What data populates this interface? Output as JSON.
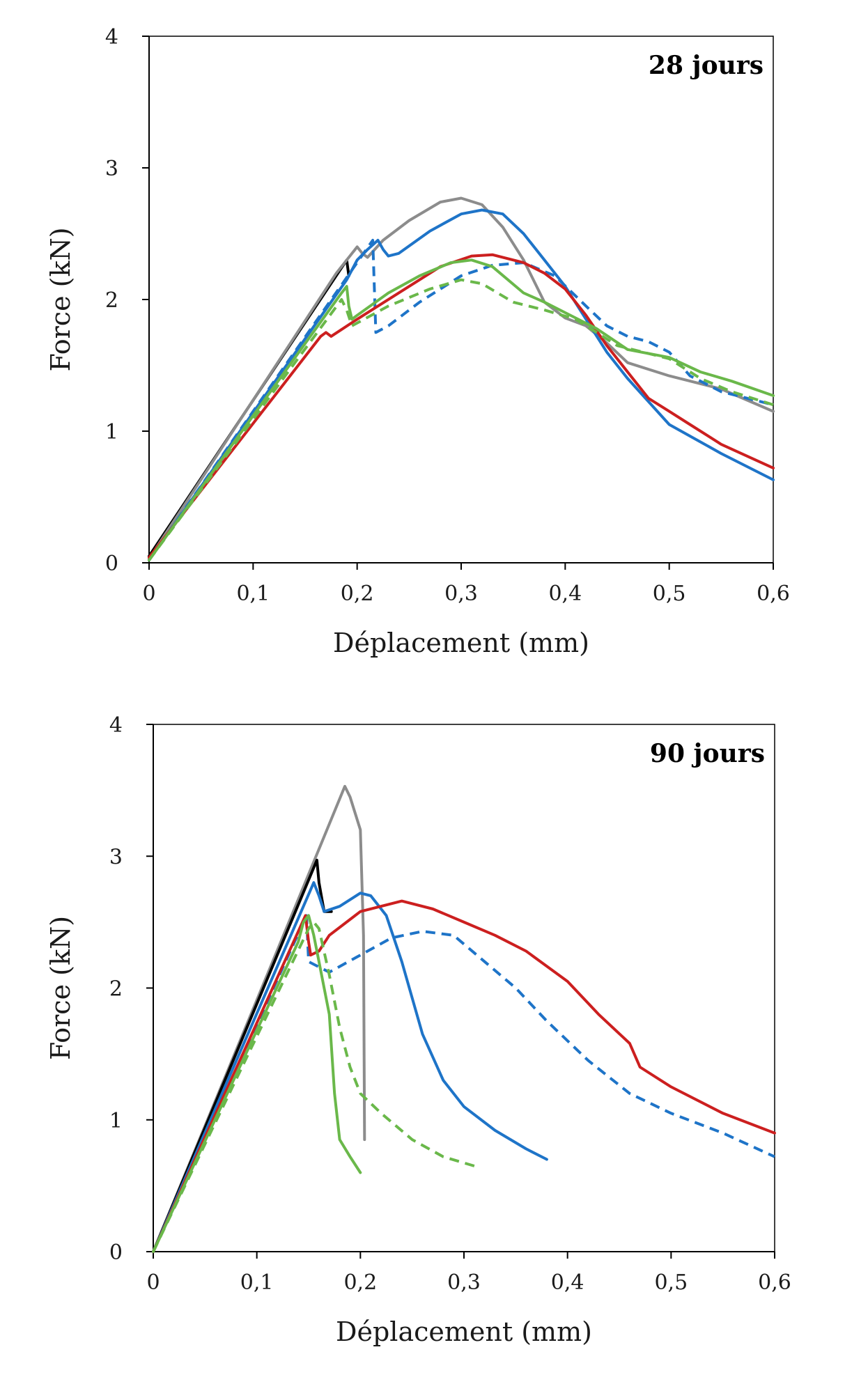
{
  "chart_data": [
    {
      "type": "line",
      "title": "28 jours",
      "xlabel": "Déplacement (mm)",
      "ylabel": "Force (kN)",
      "xlim": [
        0,
        0.6
      ],
      "ylim": [
        0,
        4
      ],
      "xticks": [
        "0",
        "0,1",
        "0,2",
        "0,3",
        "0,4",
        "0,5",
        "0,6"
      ],
      "yticks": [
        "0",
        "1",
        "2",
        "3",
        "4"
      ],
      "grid": false,
      "legend": "none",
      "series": [
        {
          "color": "#000000",
          "dash": "solid",
          "points": [
            [
              0,
              0.05
            ],
            [
              0.19,
              2.3
            ],
            [
              0.192,
              2.18
            ]
          ]
        },
        {
          "color": "#8c8c8c",
          "dash": "solid",
          "points": [
            [
              0,
              0.03
            ],
            [
              0.18,
              2.2
            ],
            [
              0.2,
              2.4
            ],
            [
              0.205,
              2.35
            ],
            [
              0.21,
              2.32
            ],
            [
              0.225,
              2.45
            ],
            [
              0.25,
              2.6
            ],
            [
              0.28,
              2.74
            ],
            [
              0.3,
              2.77
            ],
            [
              0.32,
              2.72
            ],
            [
              0.34,
              2.55
            ],
            [
              0.36,
              2.3
            ],
            [
              0.38,
              1.98
            ],
            [
              0.4,
              1.86
            ],
            [
              0.42,
              1.8
            ],
            [
              0.44,
              1.67
            ],
            [
              0.46,
              1.52
            ],
            [
              0.5,
              1.42
            ],
            [
              0.55,
              1.32
            ],
            [
              0.6,
              1.15
            ]
          ]
        },
        {
          "color": "#1e74c8",
          "dash": "solid",
          "points": [
            [
              0,
              0.02
            ],
            [
              0.19,
              2.15
            ],
            [
              0.2,
              2.3
            ],
            [
              0.21,
              2.38
            ],
            [
              0.22,
              2.45
            ],
            [
              0.225,
              2.38
            ],
            [
              0.23,
              2.33
            ],
            [
              0.24,
              2.35
            ],
            [
              0.27,
              2.52
            ],
            [
              0.3,
              2.65
            ],
            [
              0.32,
              2.68
            ],
            [
              0.34,
              2.65
            ],
            [
              0.36,
              2.5
            ],
            [
              0.38,
              2.3
            ],
            [
              0.4,
              2.1
            ],
            [
              0.42,
              1.85
            ],
            [
              0.44,
              1.6
            ],
            [
              0.46,
              1.4
            ],
            [
              0.5,
              1.05
            ],
            [
              0.55,
              0.83
            ],
            [
              0.6,
              0.63
            ]
          ]
        },
        {
          "color": "#1e74c8",
          "dash": "dashed",
          "points": [
            [
              0,
              0.02
            ],
            [
              0.215,
              2.45
            ],
            [
              0.218,
              1.75
            ],
            [
              0.23,
              1.8
            ],
            [
              0.26,
              1.98
            ],
            [
              0.3,
              2.18
            ],
            [
              0.33,
              2.26
            ],
            [
              0.36,
              2.28
            ],
            [
              0.39,
              2.18
            ],
            [
              0.42,
              1.95
            ],
            [
              0.44,
              1.8
            ],
            [
              0.46,
              1.72
            ],
            [
              0.48,
              1.68
            ],
            [
              0.5,
              1.6
            ],
            [
              0.52,
              1.42
            ],
            [
              0.55,
              1.3
            ],
            [
              0.6,
              1.2
            ]
          ]
        },
        {
          "color": "#cc1f1f",
          "dash": "solid",
          "points": [
            [
              0,
              0.04
            ],
            [
              0.165,
              1.72
            ],
            [
              0.17,
              1.75
            ],
            [
              0.175,
              1.72
            ],
            [
              0.2,
              1.85
            ],
            [
              0.24,
              2.05
            ],
            [
              0.28,
              2.25
            ],
            [
              0.31,
              2.33
            ],
            [
              0.33,
              2.34
            ],
            [
              0.36,
              2.28
            ],
            [
              0.38,
              2.2
            ],
            [
              0.4,
              2.08
            ],
            [
              0.42,
              1.88
            ],
            [
              0.44,
              1.65
            ],
            [
              0.46,
              1.45
            ],
            [
              0.48,
              1.25
            ],
            [
              0.5,
              1.15
            ],
            [
              0.52,
              1.05
            ],
            [
              0.55,
              0.9
            ],
            [
              0.6,
              0.72
            ]
          ]
        },
        {
          "color": "#6ab84a",
          "dash": "solid",
          "points": [
            [
              0,
              0.02
            ],
            [
              0.185,
              2.05
            ],
            [
              0.19,
              2.1
            ],
            [
              0.192,
              1.95
            ],
            [
              0.195,
              1.85
            ],
            [
              0.2,
              1.88
            ],
            [
              0.23,
              2.05
            ],
            [
              0.26,
              2.18
            ],
            [
              0.29,
              2.28
            ],
            [
              0.31,
              2.3
            ],
            [
              0.33,
              2.25
            ],
            [
              0.36,
              2.05
            ],
            [
              0.38,
              1.98
            ],
            [
              0.4,
              1.9
            ],
            [
              0.43,
              1.78
            ],
            [
              0.46,
              1.62
            ],
            [
              0.5,
              1.56
            ],
            [
              0.53,
              1.45
            ],
            [
              0.56,
              1.38
            ],
            [
              0.6,
              1.27
            ]
          ]
        },
        {
          "color": "#6ab84a",
          "dash": "dashed",
          "points": [
            [
              0,
              0.02
            ],
            [
              0.185,
              2.0
            ],
            [
              0.19,
              1.92
            ],
            [
              0.195,
              1.8
            ],
            [
              0.23,
              1.95
            ],
            [
              0.27,
              2.08
            ],
            [
              0.3,
              2.15
            ],
            [
              0.32,
              2.12
            ],
            [
              0.35,
              1.98
            ],
            [
              0.38,
              1.92
            ],
            [
              0.41,
              1.85
            ],
            [
              0.45,
              1.65
            ],
            [
              0.5,
              1.55
            ],
            [
              0.53,
              1.4
            ],
            [
              0.56,
              1.3
            ],
            [
              0.6,
              1.2
            ]
          ]
        }
      ]
    },
    {
      "type": "line",
      "title": "90 jours",
      "xlabel": "Déplacement (mm)",
      "ylabel": "Force (kN)",
      "xlim": [
        0,
        0.6
      ],
      "ylim": [
        0,
        4
      ],
      "xticks": [
        "0",
        "0,1",
        "0,2",
        "0,3",
        "0,4",
        "0,5",
        "0,6"
      ],
      "yticks": [
        "0",
        "1",
        "2",
        "3",
        "4"
      ],
      "grid": false,
      "legend": "none",
      "series": [
        {
          "color": "#8c8c8c",
          "dash": "solid",
          "points": [
            [
              0,
              0
            ],
            [
              0.185,
              3.53
            ],
            [
              0.19,
              3.45
            ],
            [
              0.2,
              3.2
            ],
            [
              0.203,
              2.4
            ],
            [
              0.204,
              0.85
            ]
          ]
        },
        {
          "color": "#000000",
          "dash": "solid",
          "points": [
            [
              0,
              0
            ],
            [
              0.158,
              2.97
            ],
            [
              0.16,
              2.8
            ],
            [
              0.165,
              2.58
            ],
            [
              0.172,
              2.58
            ]
          ]
        },
        {
          "color": "#1e74c8",
          "dash": "solid",
          "points": [
            [
              0,
              0
            ],
            [
              0.155,
              2.8
            ],
            [
              0.16,
              2.7
            ],
            [
              0.165,
              2.58
            ],
            [
              0.18,
              2.62
            ],
            [
              0.2,
              2.72
            ],
            [
              0.21,
              2.7
            ],
            [
              0.225,
              2.55
            ],
            [
              0.24,
              2.2
            ],
            [
              0.26,
              1.65
            ],
            [
              0.28,
              1.3
            ],
            [
              0.3,
              1.1
            ],
            [
              0.33,
              0.92
            ],
            [
              0.36,
              0.78
            ],
            [
              0.38,
              0.7
            ]
          ]
        },
        {
          "color": "#1e74c8",
          "dash": "dashed",
          "points": [
            [
              0,
              0
            ],
            [
              0.148,
              2.55
            ],
            [
              0.15,
              2.2
            ],
            [
              0.17,
              2.12
            ],
            [
              0.2,
              2.25
            ],
            [
              0.23,
              2.38
            ],
            [
              0.26,
              2.43
            ],
            [
              0.29,
              2.4
            ],
            [
              0.32,
              2.2
            ],
            [
              0.35,
              2.0
            ],
            [
              0.38,
              1.75
            ],
            [
              0.42,
              1.45
            ],
            [
              0.46,
              1.2
            ],
            [
              0.5,
              1.05
            ],
            [
              0.55,
              0.9
            ],
            [
              0.6,
              0.72
            ]
          ]
        },
        {
          "color": "#cc1f1f",
          "dash": "solid",
          "points": [
            [
              0,
              0
            ],
            [
              0.147,
              2.55
            ],
            [
              0.15,
              2.35
            ],
            [
              0.152,
              2.25
            ],
            [
              0.16,
              2.28
            ],
            [
              0.17,
              2.4
            ],
            [
              0.2,
              2.58
            ],
            [
              0.24,
              2.66
            ],
            [
              0.27,
              2.6
            ],
            [
              0.3,
              2.5
            ],
            [
              0.33,
              2.4
            ],
            [
              0.36,
              2.28
            ],
            [
              0.4,
              2.05
            ],
            [
              0.43,
              1.8
            ],
            [
              0.46,
              1.58
            ],
            [
              0.47,
              1.4
            ],
            [
              0.5,
              1.25
            ],
            [
              0.55,
              1.05
            ],
            [
              0.6,
              0.9
            ]
          ]
        },
        {
          "color": "#6ab84a",
          "dash": "solid",
          "points": [
            [
              0,
              0
            ],
            [
              0.14,
              2.35
            ],
            [
              0.145,
              2.5
            ],
            [
              0.15,
              2.55
            ],
            [
              0.155,
              2.4
            ],
            [
              0.16,
              2.2
            ],
            [
              0.17,
              1.8
            ],
            [
              0.175,
              1.2
            ],
            [
              0.18,
              0.85
            ],
            [
              0.19,
              0.72
            ],
            [
              0.2,
              0.6
            ]
          ]
        },
        {
          "color": "#6ab84a",
          "dash": "dashed",
          "points": [
            [
              0,
              0
            ],
            [
              0.15,
              2.45
            ],
            [
              0.155,
              2.5
            ],
            [
              0.16,
              2.45
            ],
            [
              0.17,
              2.1
            ],
            [
              0.18,
              1.7
            ],
            [
              0.19,
              1.4
            ],
            [
              0.2,
              1.2
            ],
            [
              0.22,
              1.05
            ],
            [
              0.25,
              0.85
            ],
            [
              0.28,
              0.72
            ],
            [
              0.31,
              0.65
            ]
          ]
        }
      ]
    }
  ]
}
